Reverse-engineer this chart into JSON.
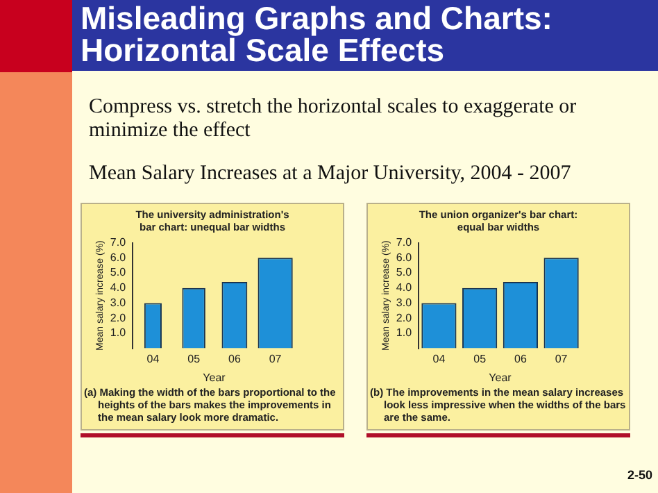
{
  "chart_data": [
    {
      "type": "other",
      "title": "Misleading Graphs and Charts: Horizontal Scale Effects",
      "annotations": [
        "Compress vs. stretch the horizontal scales to exaggerate or minimize the effect",
        "Mean Salary Increases at a Major University, 2004 - 2007",
        "2-50"
      ]
    },
    {
      "type": "bar",
      "title": "The university administration's bar chart: unequal bar widths",
      "xlabel": "Year",
      "ylabel": "Mean salary increase (%)",
      "categories": [
        "04",
        "05",
        "06",
        "07"
      ],
      "values": [
        3.0,
        4.0,
        4.4,
        6.0
      ],
      "color": "#1e90d8",
      "ylim": [
        0,
        7
      ],
      "yticks": [
        {
          "value": 1,
          "label": "1.0"
        },
        {
          "value": 2,
          "label": "2.0"
        },
        {
          "value": 3,
          "label": "3.0"
        },
        {
          "value": 4,
          "label": "4.0"
        },
        {
          "value": 5,
          "label": "5.0"
        },
        {
          "value": 6,
          "label": "6.0"
        },
        {
          "value": 7,
          "label": "7.0"
        }
      ],
      "annotations": [
        "(a) Making the width of the bars proportional to the heights of the bars makes the improvements in the mean salary look more dramatic."
      ]
    },
    {
      "type": "bar",
      "title": "The union organizer's bar chart: equal bar widths",
      "xlabel": "Year",
      "ylabel": "Mean salary increase (%)",
      "categories": [
        "04",
        "05",
        "06",
        "07"
      ],
      "values": [
        3.0,
        4.0,
        4.4,
        6.0
      ],
      "color": "#1e90d8",
      "ylim": [
        0,
        7
      ],
      "yticks": [
        {
          "value": 1,
          "label": "1.0"
        },
        {
          "value": 2,
          "label": "2.0"
        },
        {
          "value": 3,
          "label": "3.0"
        },
        {
          "value": 4,
          "label": "4.0"
        },
        {
          "value": 5,
          "label": "5.0"
        },
        {
          "value": 6,
          "label": "6.0"
        },
        {
          "value": 7,
          "label": "7.0"
        }
      ],
      "annotations": [
        "(b) The improvements in the mean salary increases look less impressive when the widths of the bars are the same."
      ]
    }
  ]
}
